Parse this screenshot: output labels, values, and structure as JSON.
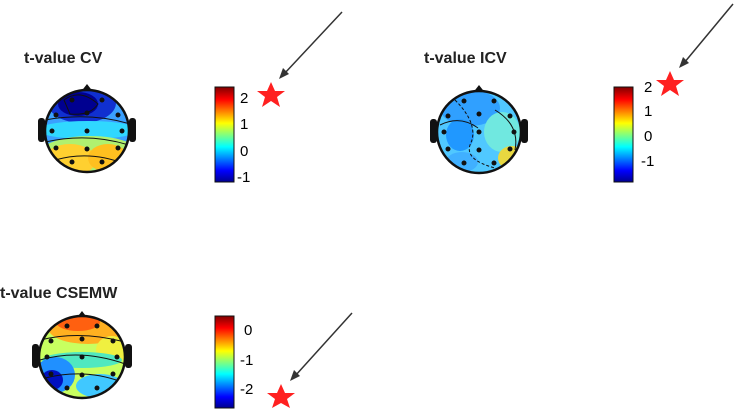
{
  "panels": [
    {
      "id": "cv",
      "title": "t-value CV",
      "colorbar": {
        "ticks": [
          "2",
          "1",
          "0",
          "-1"
        ]
      },
      "highlighted_tick": "2"
    },
    {
      "id": "icv",
      "title": "t-value ICV",
      "colorbar": {
        "ticks": [
          "2",
          "1",
          "0",
          "-1"
        ]
      },
      "highlighted_tick": "2"
    },
    {
      "id": "csemw",
      "title": "t-value CSEMW",
      "colorbar": {
        "ticks": [
          "0",
          "-1",
          "-2"
        ]
      },
      "highlighted_tick": "-2"
    }
  ],
  "colormap": [
    "#00008f",
    "#0000ff",
    "#0080ff",
    "#00ffff",
    "#80ff80",
    "#ffff00",
    "#ff8000",
    "#ff0000",
    "#800000"
  ],
  "marker_color": "#ff2020",
  "icons": {
    "marker": "star-icon",
    "pointer": "arrow-icon",
    "head": "scalp-topomap-icon"
  }
}
